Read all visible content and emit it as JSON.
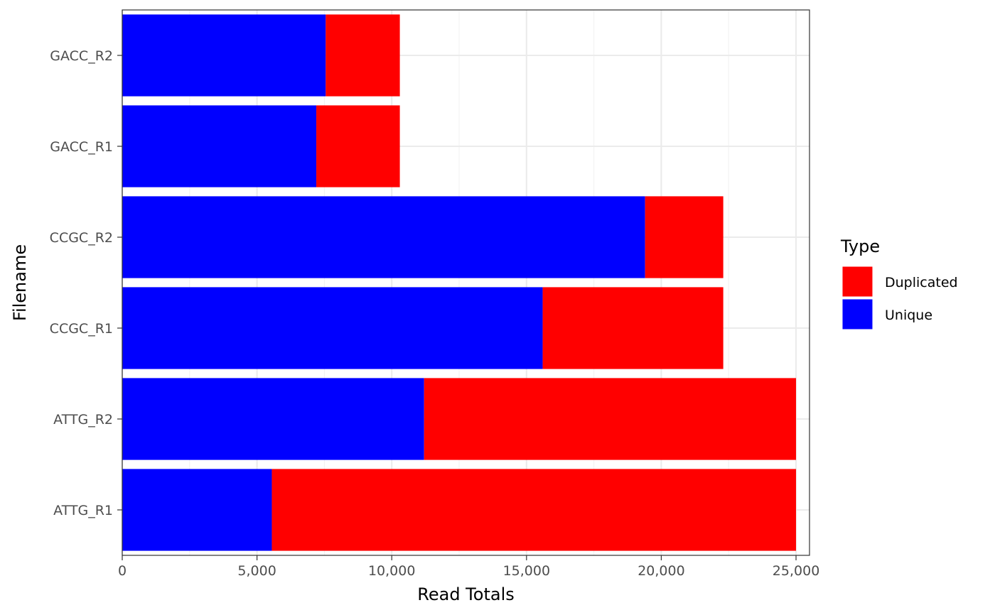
{
  "chart_data": {
    "type": "bar",
    "orientation": "horizontal",
    "stacked": true,
    "categories": [
      "ATTG_R1",
      "ATTG_R2",
      "CCGC_R1",
      "CCGC_R2",
      "GACC_R1",
      "GACC_R2"
    ],
    "series": [
      {
        "name": "Unique",
        "color": "#0000FF",
        "values": [
          5550,
          11200,
          15600,
          19400,
          7200,
          7550
        ]
      },
      {
        "name": "Duplicated",
        "color": "#FF0000",
        "values": [
          19450,
          13800,
          6700,
          2900,
          3100,
          2750
        ]
      }
    ],
    "xlabel": "Read Totals",
    "ylabel": "Filename",
    "xlim": [
      0,
      25500
    ],
    "xticks": [
      0,
      5000,
      10000,
      15000,
      20000,
      25000
    ],
    "xtick_labels": [
      "0",
      "5,000",
      "10,000",
      "15,000",
      "20,000",
      "25,000"
    ],
    "grid": true,
    "legend": {
      "title": "Type",
      "placement": "right",
      "entries": [
        "Duplicated",
        "Unique"
      ]
    }
  }
}
